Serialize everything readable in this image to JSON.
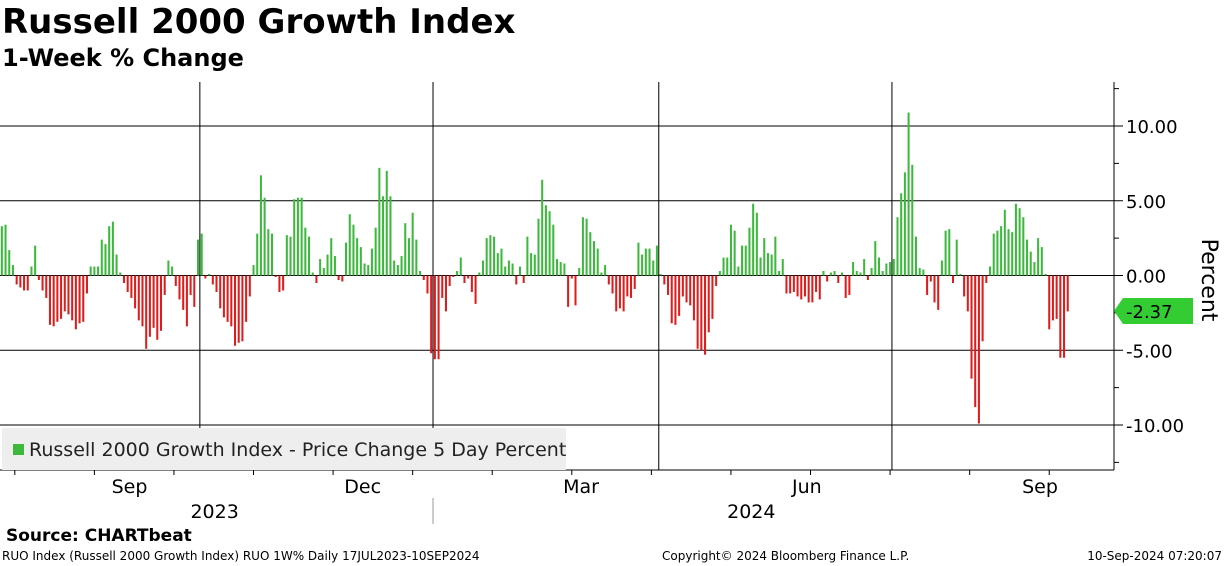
{
  "chart_data": {
    "type": "bar",
    "title": "Russell 2000 Growth Index",
    "subtitle": "1-Week % Change",
    "ylabel": "Percent",
    "ylim": [
      -13,
      13
    ],
    "yticks": [
      10,
      5,
      0,
      -5,
      -10
    ],
    "ytick_labels": [
      "10.00",
      "5.00",
      "0.00",
      "-5.00",
      "-10.00"
    ],
    "xdomain": [
      0,
      301
    ],
    "month_labels": [
      {
        "label": "Sep",
        "pos": 35
      },
      {
        "label": "Dec",
        "pos": 98
      },
      {
        "label": "Mar",
        "pos": 157
      },
      {
        "label": "Jun",
        "pos": 218
      },
      {
        "label": "Sep",
        "pos": 281
      }
    ],
    "year_labels": [
      {
        "label": "2023",
        "pos": 58
      },
      {
        "label": "2024",
        "pos": 203
      }
    ],
    "year_separators": [
      117
    ],
    "vgrid": [
      54,
      117,
      178,
      241
    ],
    "last_value": -2.37,
    "last_value_label": "-2.37",
    "legend": "Russell 2000 Growth Index - Price Change 5 Day Percent",
    "colors": {
      "positive": "#3cb93c",
      "negative": "#e01b1b",
      "label_bg": "#33cc33"
    },
    "series": [
      {
        "name": "Russell 2000 Growth Index - Price Change 5 Day Percent",
        "values": [
          3.3,
          3.4,
          1.7,
          0.7,
          -0.6,
          -0.8,
          -1.0,
          -1.0,
          0.6,
          2.0,
          -0.3,
          -1.0,
          -1.5,
          -3.3,
          -3.4,
          -3.1,
          -2.9,
          -2.4,
          -2.6,
          -3.0,
          -3.6,
          -3.2,
          -3.1,
          -1.2,
          0.6,
          0.6,
          0.6,
          2.4,
          2.1,
          3.3,
          3.6,
          1.4,
          0.2,
          -0.5,
          -1.1,
          -1.5,
          -2.2,
          -3.0,
          -3.4,
          -4.9,
          -4.1,
          -3.5,
          -4.3,
          -3.7,
          -1.3,
          1.0,
          0.6,
          -0.7,
          -1.6,
          -2.3,
          -3.4,
          -1.3,
          -2.1,
          2.4,
          2.8,
          -0.2,
          0.1,
          -0.6,
          -1.1,
          -2.2,
          -2.8,
          -3.1,
          -3.4,
          -4.7,
          -4.5,
          -4.4,
          -3.1,
          -1.4,
          0.7,
          2.8,
          6.7,
          5.2,
          3.1,
          2.8,
          -0.1,
          -1.1,
          -1.0,
          2.7,
          2.6,
          5.1,
          5.2,
          5.2,
          3.2,
          2.6,
          0.2,
          -0.5,
          1.1,
          0.5,
          1.4,
          2.5,
          1.3,
          -0.3,
          -0.4,
          2.2,
          4.1,
          3.4,
          2.5,
          1.9,
          0.8,
          0.7,
          1.8,
          3.2,
          7.2,
          5.3,
          7.0,
          5.3,
          1.0,
          0.7,
          1.3,
          3.5,
          2.5,
          4.2,
          2.4,
          0.3,
          -0.3,
          -1.2,
          -5.2,
          -5.6,
          -5.6,
          -1.5,
          -2.4,
          -0.7,
          -0.1,
          0.3,
          1.2,
          -0.5,
          -0.2,
          -1.1,
          -1.9,
          0.2,
          1.0,
          2.5,
          2.7,
          2.6,
          1.5,
          1.8,
          0.6,
          1.0,
          0.8,
          -0.6,
          0.6,
          -0.5,
          2.6,
          1.5,
          1.4,
          3.8,
          6.4,
          4.7,
          4.3,
          3.4,
          1.1,
          0.9,
          0.8,
          -2.1,
          -0.2,
          -2.0,
          0.5,
          3.9,
          3.8,
          2.9,
          2.3,
          1.8,
          0.2,
          0.7,
          -0.6,
          -1.2,
          -2.4,
          -2.2,
          -2.4,
          -1.4,
          -1.5,
          -0.9,
          2.2,
          1.4,
          1.8,
          1.8,
          1.0,
          2.0,
          0.1,
          -0.6,
          -1.3,
          -3.2,
          -3.3,
          -2.7,
          -1.4,
          -1.8,
          -2.0,
          -3.0,
          -4.9,
          -5.0,
          -5.3,
          -3.8,
          -2.9,
          -0.7,
          0.3,
          1.2,
          1.2,
          3.4,
          3.0,
          0.6,
          2.0,
          2.0,
          3.2,
          4.8,
          4.2,
          1.2,
          2.5,
          1.5,
          1.4,
          2.6,
          0.3,
          1.1,
          -1.2,
          -1.2,
          -1.1,
          -1.4,
          -1.6,
          -1.4,
          -1.8,
          -1.8,
          -1.1,
          -1.6,
          0.3,
          -0.4,
          0.2,
          0.3,
          -0.5,
          0.2,
          -1.5,
          -1.3,
          0.9,
          0.3,
          0.2,
          1.1,
          -0.3,
          0.5,
          2.3,
          1.2,
          0.3,
          0.8,
          0.9,
          1.1,
          3.9,
          5.5,
          6.9,
          10.9,
          7.4,
          2.6,
          0.5,
          0.4,
          -1.3,
          -0.4,
          -1.8,
          -2.3,
          1.0,
          3.0,
          3.1,
          -0.5,
          2.4,
          0.1,
          -1.4,
          -2.4,
          -6.9,
          -8.8,
          -9.9,
          -4.4,
          -0.5,
          0.6,
          2.8,
          3.0,
          3.3,
          4.4,
          3.1,
          2.9,
          4.8,
          4.5,
          3.9,
          2.4,
          1.6,
          0.9,
          2.5,
          1.9,
          0.1,
          -3.6,
          -3.0,
          -2.9,
          -5.5,
          -5.5,
          -2.4
        ]
      }
    ]
  },
  "footer": {
    "source": "Source: CHARTbeat",
    "left": "RUO Index (Russell 2000 Growth Index) RUO 1W%  Daily 17JUL2023-10SEP2024",
    "mid": "Copyright© 2024 Bloomberg Finance L.P.",
    "right": "10-Sep-2024 07:20:07"
  }
}
